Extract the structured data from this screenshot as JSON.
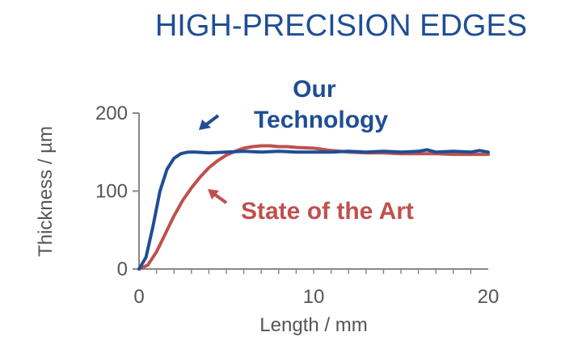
{
  "title": "HIGH-PRECISION EDGES",
  "chart_data": {
    "type": "line",
    "title": "HIGH-PRECISION EDGES",
    "xlabel": "Length / mm",
    "ylabel": "Thickness / µm",
    "xlim": [
      0,
      20
    ],
    "ylim": [
      0,
      200
    ],
    "xticks": [
      "0",
      "10",
      "20"
    ],
    "yticks": [
      "0",
      "100",
      "200"
    ],
    "grid": false,
    "series": [
      {
        "name": "Our Technology",
        "color": "#1f4e95",
        "x": [
          0,
          0.4,
          0.8,
          1.2,
          1.6,
          2.0,
          2.4,
          2.8,
          3.2,
          4,
          5,
          6,
          7,
          8,
          9,
          10,
          11,
          12,
          13,
          14,
          15,
          16,
          16.5,
          17,
          18,
          19,
          19.5,
          20
        ],
        "y": [
          0,
          15,
          55,
          100,
          128,
          142,
          148,
          150,
          150,
          149,
          150,
          151,
          150,
          151,
          150,
          150,
          150,
          151,
          150,
          151,
          150,
          151,
          153,
          150,
          151,
          150,
          152,
          150
        ]
      },
      {
        "name": "State of the Art",
        "color": "#c0504d",
        "x": [
          0,
          0.5,
          1,
          1.5,
          2,
          2.5,
          3,
          3.5,
          4,
          4.5,
          5,
          5.5,
          6,
          6.5,
          7,
          7.5,
          8,
          8.5,
          9,
          10,
          11,
          12,
          13,
          14,
          15,
          16,
          17,
          18,
          19,
          20
        ],
        "y": [
          0,
          5,
          22,
          45,
          68,
          88,
          104,
          118,
          130,
          139,
          146,
          151,
          155,
          157,
          158,
          158,
          157,
          157,
          156,
          155,
          152,
          150,
          149,
          149,
          148,
          148,
          148,
          147,
          147,
          147
        ]
      }
    ],
    "annotations": [
      {
        "text_lines": [
          "Our",
          "Technology"
        ],
        "color": "#1f4e95"
      },
      {
        "text_lines": [
          "State of the Art"
        ],
        "color": "#c0504d"
      }
    ]
  }
}
